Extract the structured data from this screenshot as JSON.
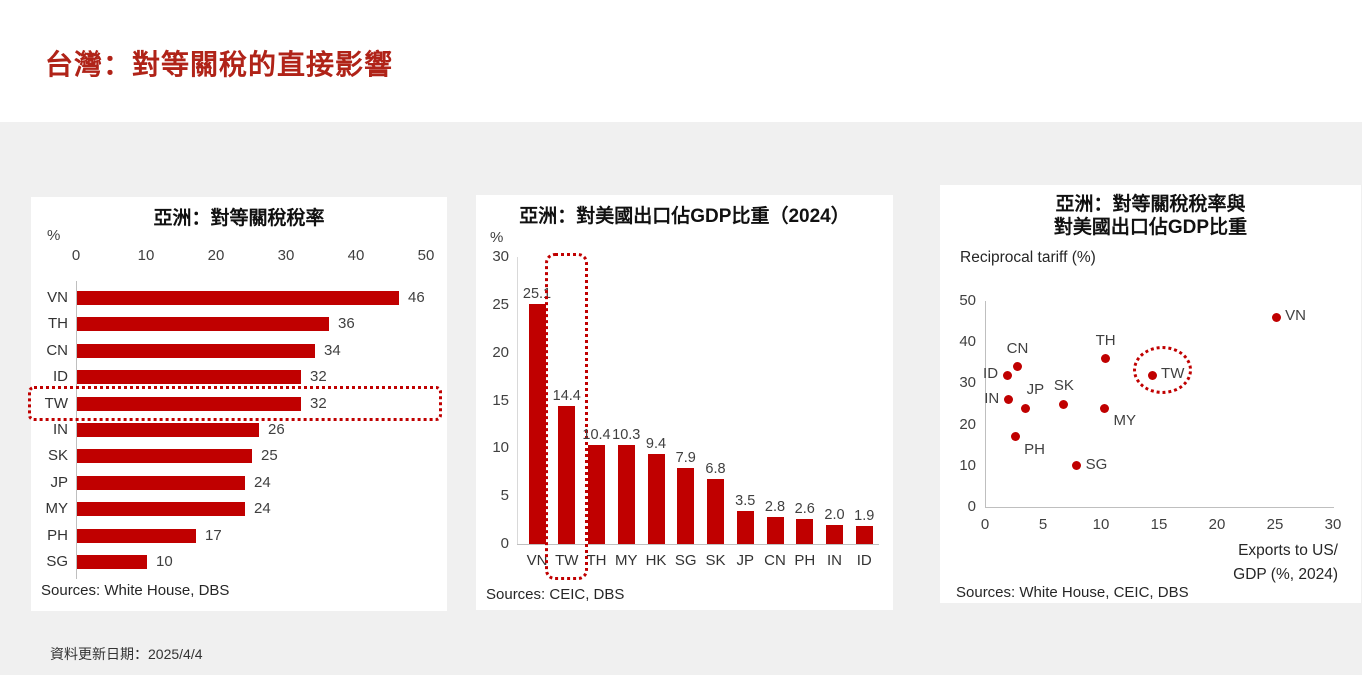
{
  "slide": {
    "title": "台灣：對等關稅的直接影響",
    "footer": "資料更新日期：2025/4/4"
  },
  "colors": {
    "accent": "#C00000",
    "slide_title": "#B02318",
    "background": "#F0F0F0",
    "panel": "#FFFFFF",
    "axis_line": "#BFBFBF",
    "label_text": "#404040"
  },
  "chart_data": [
    {
      "type": "bar",
      "orientation": "horizontal",
      "title": "亞洲：對等關稅稅率",
      "unit_label": "%",
      "categories": [
        "VN",
        "TH",
        "CN",
        "ID",
        "TW",
        "IN",
        "SK",
        "JP",
        "MY",
        "PH",
        "SG"
      ],
      "values": [
        46,
        36,
        34,
        32,
        32,
        26,
        25,
        24,
        24,
        17,
        10
      ],
      "value_labels": [
        "46",
        "36",
        "34",
        "32",
        "32",
        "26",
        "25",
        "24",
        "24",
        "17",
        "10"
      ],
      "xlim": [
        0,
        50
      ],
      "xticks": [
        0,
        10,
        20,
        30,
        40,
        50
      ],
      "highlight_category": "TW",
      "bar_color": "#C00000",
      "grid": false,
      "source": "Sources: White House, DBS"
    },
    {
      "type": "bar",
      "orientation": "vertical",
      "title": "亞洲：對美國出口佔GDP比重（2024）",
      "unit_label": "%",
      "categories": [
        "VN",
        "TW",
        "TH",
        "MY",
        "HK",
        "SG",
        "SK",
        "JP",
        "CN",
        "PH",
        "IN",
        "ID"
      ],
      "values": [
        25.1,
        14.4,
        10.4,
        10.3,
        9.4,
        7.9,
        6.8,
        3.5,
        2.8,
        2.6,
        2.0,
        1.9
      ],
      "value_labels": [
        "25.1",
        "14.4",
        "10.4",
        "10.3",
        "9.4",
        "7.9",
        "6.8",
        "3.5",
        "2.8",
        "2.6",
        "2.0",
        "1.9"
      ],
      "ylim": [
        0,
        30
      ],
      "yticks": [
        0,
        5,
        10,
        15,
        20,
        25,
        30
      ],
      "highlight_category": "TW",
      "bar_color": "#C00000",
      "grid": false,
      "source": "Sources: CEIC, DBS"
    },
    {
      "type": "scatter",
      "title_lines": [
        "亞洲：對等關稅稅率與",
        "對美國出口佔GDP比重"
      ],
      "ylabel": "Reciprocal tariff (%)",
      "xlabel_lines": [
        "Exports to US/",
        "GDP (%, 2024)"
      ],
      "xlim": [
        0,
        30
      ],
      "ylim": [
        0,
        50
      ],
      "xticks": [
        0,
        5,
        10,
        15,
        20,
        25,
        30
      ],
      "yticks": [
        0,
        10,
        20,
        30,
        40,
        50
      ],
      "points": [
        {
          "label": "VN",
          "x": 25.1,
          "y": 46,
          "label_pos": "right",
          "highlight": false
        },
        {
          "label": "TH",
          "x": 10.4,
          "y": 36,
          "label_pos": "above",
          "highlight": false
        },
        {
          "label": "CN",
          "x": 2.8,
          "y": 34,
          "label_pos": "above",
          "highlight": false
        },
        {
          "label": "ID",
          "x": 1.9,
          "y": 32,
          "label_pos": "left",
          "highlight": false
        },
        {
          "label": "TW",
          "x": 14.4,
          "y": 32,
          "label_pos": "right",
          "highlight": true
        },
        {
          "label": "IN",
          "x": 2.0,
          "y": 26,
          "label_pos": "left",
          "highlight": false
        },
        {
          "label": "SK",
          "x": 6.8,
          "y": 25,
          "label_pos": "above",
          "highlight": false
        },
        {
          "label": "JP",
          "x": 3.5,
          "y": 24,
          "label_pos": "above-right",
          "highlight": false
        },
        {
          "label": "MY",
          "x": 10.3,
          "y": 24,
          "label_pos": "below-right",
          "highlight": false
        },
        {
          "label": "PH",
          "x": 2.6,
          "y": 17,
          "label_pos": "below-right",
          "highlight": false
        },
        {
          "label": "SG",
          "x": 7.9,
          "y": 10,
          "label_pos": "right",
          "highlight": false
        }
      ],
      "point_color": "#C00000",
      "grid": false,
      "source": "Sources: White House, CEIC, DBS"
    }
  ]
}
